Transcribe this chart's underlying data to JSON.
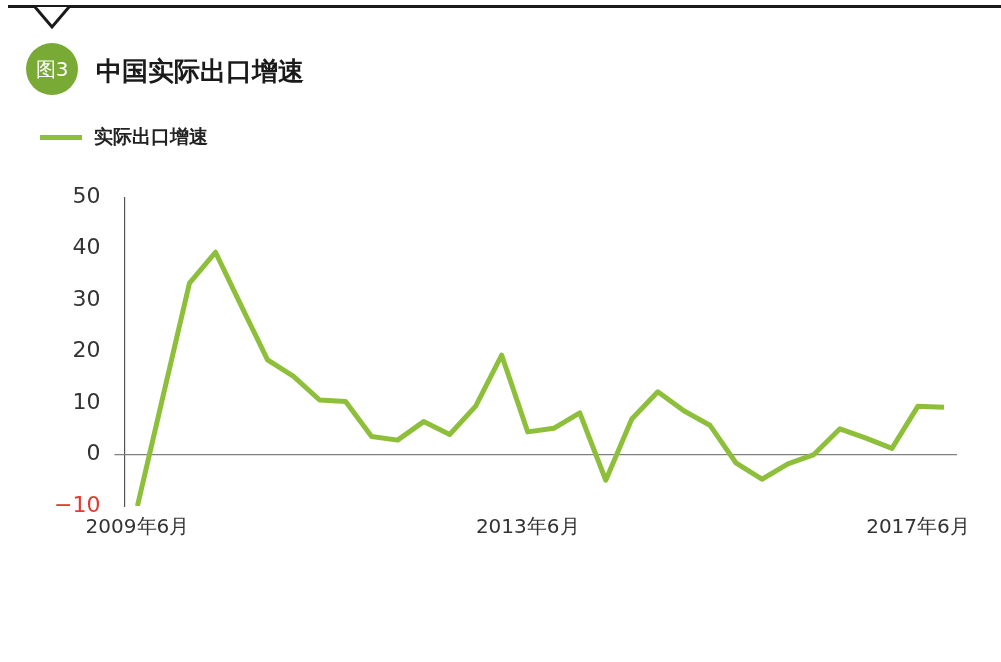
{
  "chart_data": {
    "type": "line",
    "title": "中国实际出口增速",
    "annotations": [
      "图3"
    ],
    "categories": [
      "2009年6月",
      null,
      null,
      null,
      null,
      null,
      null,
      null,
      null,
      null,
      null,
      null,
      null,
      null,
      null,
      "2013年6月",
      null,
      null,
      null,
      null,
      null,
      null,
      null,
      null,
      null,
      null,
      null,
      null,
      null,
      null,
      "2017年6月",
      null
    ],
    "series": [
      {
        "name": "实际出口增速",
        "color": "#8dbf3a",
        "values": [
          -10,
          11.7,
          33.3,
          39.3,
          28.8,
          18.4,
          15.2,
          10.6,
          10.3,
          3.5,
          2.8,
          6.4,
          3.9,
          9.4,
          19.3,
          4.4,
          5.1,
          8.1,
          -5.0,
          6.9,
          12.2,
          8.5,
          5.7,
          -1.6,
          -4.8,
          -1.8,
          0,
          5.0,
          3.2,
          1.2,
          9.4,
          9.2
        ]
      }
    ],
    "ylim": [
      -10,
      50
    ],
    "yticks": [
      -10,
      0,
      10,
      20,
      30,
      40,
      50
    ],
    "ref_lines": [
      {
        "axis": "y",
        "value": 0,
        "color": "#808080"
      }
    ],
    "grid": false,
    "legend": "top left",
    "marker": "none",
    "line_style": "solid"
  }
}
